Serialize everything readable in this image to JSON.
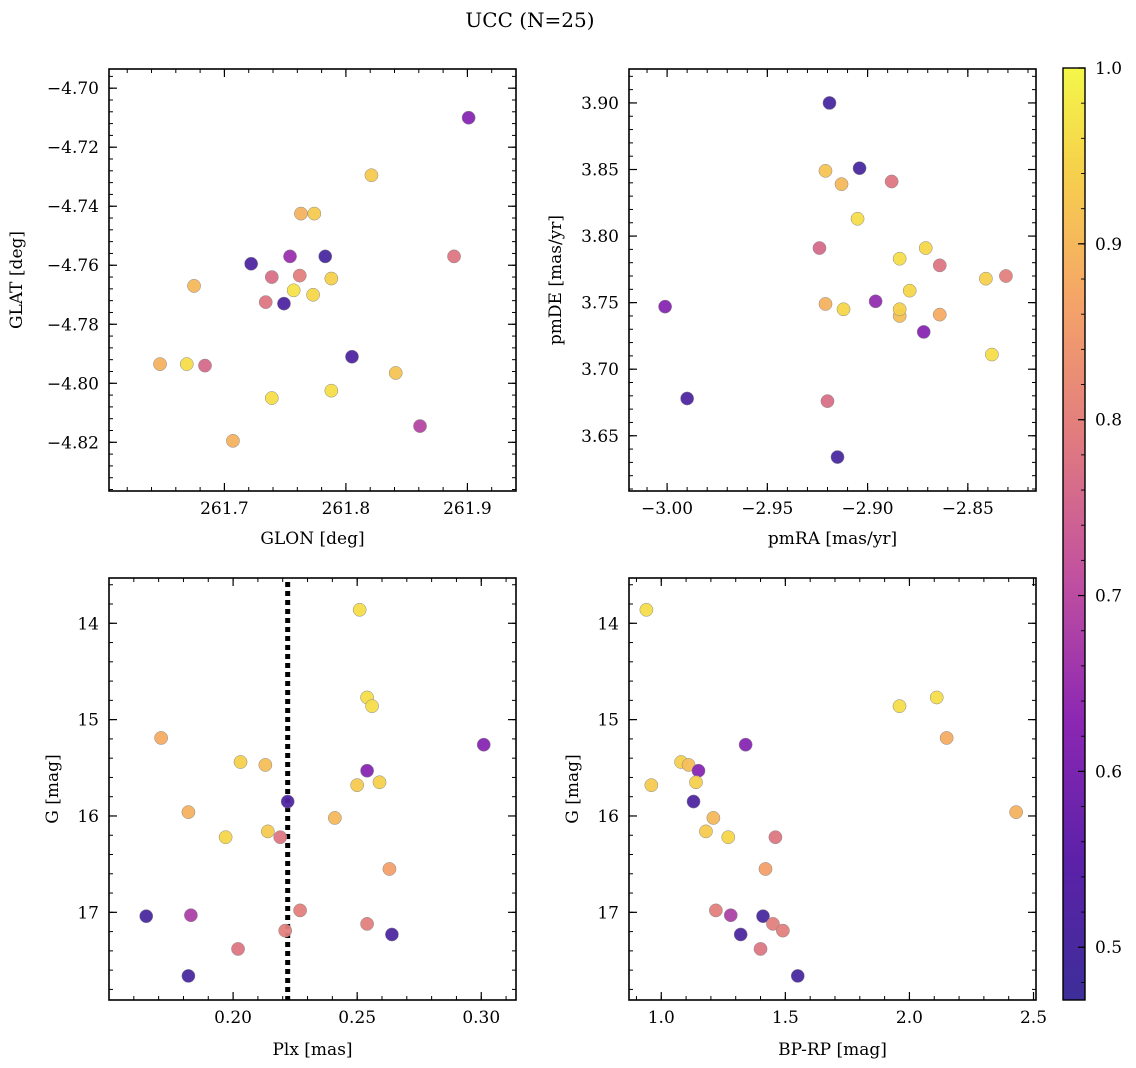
{
  "figure": {
    "title": "UCC (N=25)"
  },
  "colorbar": {
    "cmap": "plasma",
    "range": [
      0.47,
      1.0
    ],
    "ticks": [
      "0.5",
      "0.6",
      "0.7",
      "0.8",
      "0.9",
      "1.0"
    ]
  },
  "chart_data": [
    {
      "type": "scatter",
      "id": "p1",
      "xlabel": "GLON [deg]",
      "ylabel": "GLAT [deg]",
      "xlim": [
        261.605,
        261.94
      ],
      "ylim": [
        -4.8365,
        -4.6935
      ],
      "xticks": [
        "261.7",
        "261.8",
        "261.9"
      ],
      "yticks": [
        "−4.70",
        "−4.72",
        "−4.74",
        "−4.76",
        "−4.78",
        "−4.80",
        "−4.82"
      ],
      "points": [
        {
          "x": 261.901,
          "y": -4.71,
          "c": 0.62
        },
        {
          "x": 261.821,
          "y": -4.7295,
          "c": 0.93
        },
        {
          "x": 261.763,
          "y": -4.7425,
          "c": 0.89
        },
        {
          "x": 261.774,
          "y": -4.7425,
          "c": 0.93
        },
        {
          "x": 261.889,
          "y": -4.757,
          "c": 0.78
        },
        {
          "x": 261.754,
          "y": -4.757,
          "c": 0.65
        },
        {
          "x": 261.783,
          "y": -4.757,
          "c": 0.5
        },
        {
          "x": 261.722,
          "y": -4.7595,
          "c": 0.52
        },
        {
          "x": 261.762,
          "y": -4.7635,
          "c": 0.8
        },
        {
          "x": 261.739,
          "y": -4.764,
          "c": 0.77
        },
        {
          "x": 261.788,
          "y": -4.7645,
          "c": 0.94
        },
        {
          "x": 261.675,
          "y": -4.767,
          "c": 0.9
        },
        {
          "x": 261.757,
          "y": -4.7685,
          "c": 0.97
        },
        {
          "x": 261.773,
          "y": -4.77,
          "c": 0.95
        },
        {
          "x": 261.734,
          "y": -4.7725,
          "c": 0.78
        },
        {
          "x": 261.749,
          "y": -4.773,
          "c": 0.52
        },
        {
          "x": 261.805,
          "y": -4.791,
          "c": 0.52
        },
        {
          "x": 261.647,
          "y": -4.7935,
          "c": 0.89
        },
        {
          "x": 261.669,
          "y": -4.7935,
          "c": 0.96
        },
        {
          "x": 261.684,
          "y": -4.794,
          "c": 0.76
        },
        {
          "x": 261.841,
          "y": -4.7965,
          "c": 0.92
        },
        {
          "x": 261.788,
          "y": -4.8025,
          "c": 0.96
        },
        {
          "x": 261.739,
          "y": -4.805,
          "c": 0.96
        },
        {
          "x": 261.861,
          "y": -4.8145,
          "c": 0.69
        },
        {
          "x": 261.707,
          "y": -4.8195,
          "c": 0.89
        }
      ]
    },
    {
      "type": "scatter",
      "id": "p2",
      "xlabel": "pmRA [mas/yr]",
      "ylabel": "pmDE [mas/yr]",
      "xlim": [
        -3.019,
        -2.816
      ],
      "ylim": [
        3.6085,
        3.9255
      ],
      "xticks": [
        "−3.00",
        "−2.95",
        "−2.90",
        "−2.85"
      ],
      "yticks": [
        "3.65",
        "3.70",
        "3.75",
        "3.80",
        "3.85",
        "3.90"
      ],
      "points": [
        {
          "x": -2.919,
          "y": 3.9,
          "c": 0.5
        },
        {
          "x": -2.904,
          "y": 3.851,
          "c": 0.5
        },
        {
          "x": -2.921,
          "y": 3.849,
          "c": 0.92
        },
        {
          "x": -2.913,
          "y": 3.839,
          "c": 0.9
        },
        {
          "x": -2.888,
          "y": 3.841,
          "c": 0.78
        },
        {
          "x": -2.905,
          "y": 3.813,
          "c": 0.96
        },
        {
          "x": -2.924,
          "y": 3.791,
          "c": 0.76
        },
        {
          "x": -2.871,
          "y": 3.791,
          "c": 0.95
        },
        {
          "x": -2.884,
          "y": 3.783,
          "c": 0.96
        },
        {
          "x": -2.864,
          "y": 3.778,
          "c": 0.78
        },
        {
          "x": -2.879,
          "y": 3.759,
          "c": 0.95
        },
        {
          "x": -2.841,
          "y": 3.768,
          "c": 0.94
        },
        {
          "x": -2.831,
          "y": 3.77,
          "c": 0.8
        },
        {
          "x": -2.921,
          "y": 3.749,
          "c": 0.89
        },
        {
          "x": -2.912,
          "y": 3.745,
          "c": 0.95
        },
        {
          "x": -2.896,
          "y": 3.751,
          "c": 0.64
        },
        {
          "x": -2.884,
          "y": 3.74,
          "c": 0.91
        },
        {
          "x": -2.884,
          "y": 3.745,
          "c": 0.94
        },
        {
          "x": -2.864,
          "y": 3.741,
          "c": 0.88
        },
        {
          "x": -2.872,
          "y": 3.728,
          "c": 0.62
        },
        {
          "x": -3.001,
          "y": 3.747,
          "c": 0.62
        },
        {
          "x": -2.838,
          "y": 3.711,
          "c": 0.96
        },
        {
          "x": -2.99,
          "y": 3.678,
          "c": 0.52
        },
        {
          "x": -2.92,
          "y": 3.676,
          "c": 0.77
        },
        {
          "x": -2.915,
          "y": 3.634,
          "c": 0.5
        }
      ]
    },
    {
      "type": "scatter",
      "id": "p3",
      "xlabel": "Plx [mas]",
      "ylabel": "G [mag]",
      "xlim": [
        0.15,
        0.314
      ],
      "ylim": [
        17.91,
        13.53
      ],
      "y_inverted": true,
      "xticks": [
        "0.20",
        "0.25",
        "0.30"
      ],
      "yticks": [
        "14",
        "15",
        "16",
        "17"
      ],
      "reference_line": {
        "axis": "x",
        "value": 0.222,
        "style": "dotted",
        "color": "#000000"
      },
      "points": [
        {
          "x": 0.251,
          "y": 13.86,
          "c": 0.96
        },
        {
          "x": 0.254,
          "y": 14.77,
          "c": 0.96
        },
        {
          "x": 0.256,
          "y": 14.86,
          "c": 0.96
        },
        {
          "x": 0.171,
          "y": 15.19,
          "c": 0.88
        },
        {
          "x": 0.301,
          "y": 15.26,
          "c": 0.62
        },
        {
          "x": 0.203,
          "y": 15.44,
          "c": 0.94
        },
        {
          "x": 0.213,
          "y": 15.47,
          "c": 0.91
        },
        {
          "x": 0.254,
          "y": 15.53,
          "c": 0.62
        },
        {
          "x": 0.259,
          "y": 15.65,
          "c": 0.94
        },
        {
          "x": 0.25,
          "y": 15.68,
          "c": 0.93
        },
        {
          "x": 0.222,
          "y": 15.85,
          "c": 0.52
        },
        {
          "x": 0.182,
          "y": 15.96,
          "c": 0.89
        },
        {
          "x": 0.241,
          "y": 16.02,
          "c": 0.9
        },
        {
          "x": 0.214,
          "y": 16.16,
          "c": 0.93
        },
        {
          "x": 0.197,
          "y": 16.22,
          "c": 0.95
        },
        {
          "x": 0.219,
          "y": 16.22,
          "c": 0.78
        },
        {
          "x": 0.263,
          "y": 16.55,
          "c": 0.86
        },
        {
          "x": 0.227,
          "y": 16.98,
          "c": 0.8
        },
        {
          "x": 0.165,
          "y": 17.04,
          "c": 0.5
        },
        {
          "x": 0.183,
          "y": 17.03,
          "c": 0.68
        },
        {
          "x": 0.254,
          "y": 17.12,
          "c": 0.8
        },
        {
          "x": 0.221,
          "y": 17.19,
          "c": 0.8
        },
        {
          "x": 0.264,
          "y": 17.23,
          "c": 0.51
        },
        {
          "x": 0.202,
          "y": 17.38,
          "c": 0.78
        },
        {
          "x": 0.182,
          "y": 17.66,
          "c": 0.5
        }
      ]
    },
    {
      "type": "scatter",
      "id": "p4",
      "xlabel": "BP-RP [mag]",
      "ylabel": "G [mag]",
      "xlim": [
        0.87,
        2.51
      ],
      "ylim": [
        17.91,
        13.53
      ],
      "y_inverted": true,
      "xticks": [
        "1.0",
        "1.5",
        "2.0",
        "2.5"
      ],
      "yticks": [
        "14",
        "15",
        "16",
        "17"
      ],
      "points": [
        {
          "x": 0.94,
          "y": 13.86,
          "c": 0.96
        },
        {
          "x": 2.11,
          "y": 14.77,
          "c": 0.96
        },
        {
          "x": 1.96,
          "y": 14.86,
          "c": 0.96
        },
        {
          "x": 2.15,
          "y": 15.19,
          "c": 0.88
        },
        {
          "x": 1.34,
          "y": 15.26,
          "c": 0.62
        },
        {
          "x": 1.08,
          "y": 15.44,
          "c": 0.94
        },
        {
          "x": 1.11,
          "y": 15.47,
          "c": 0.91
        },
        {
          "x": 1.15,
          "y": 15.53,
          "c": 0.62
        },
        {
          "x": 1.14,
          "y": 15.65,
          "c": 0.94
        },
        {
          "x": 0.96,
          "y": 15.68,
          "c": 0.93
        },
        {
          "x": 1.13,
          "y": 15.85,
          "c": 0.52
        },
        {
          "x": 2.43,
          "y": 15.96,
          "c": 0.89
        },
        {
          "x": 1.21,
          "y": 16.02,
          "c": 0.9
        },
        {
          "x": 1.18,
          "y": 16.16,
          "c": 0.93
        },
        {
          "x": 1.27,
          "y": 16.22,
          "c": 0.95
        },
        {
          "x": 1.46,
          "y": 16.22,
          "c": 0.78
        },
        {
          "x": 1.42,
          "y": 16.55,
          "c": 0.86
        },
        {
          "x": 1.22,
          "y": 16.98,
          "c": 0.8
        },
        {
          "x": 1.41,
          "y": 17.04,
          "c": 0.5
        },
        {
          "x": 1.28,
          "y": 17.03,
          "c": 0.68
        },
        {
          "x": 1.45,
          "y": 17.12,
          "c": 0.8
        },
        {
          "x": 1.49,
          "y": 17.19,
          "c": 0.8
        },
        {
          "x": 1.32,
          "y": 17.23,
          "c": 0.51
        },
        {
          "x": 1.4,
          "y": 17.38,
          "c": 0.78
        },
        {
          "x": 1.55,
          "y": 17.66,
          "c": 0.5
        }
      ]
    }
  ]
}
